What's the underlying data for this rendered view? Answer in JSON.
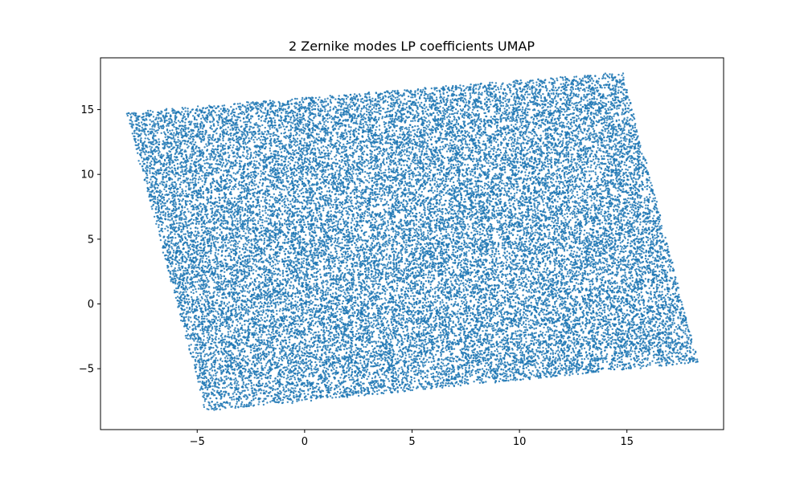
{
  "chart_data": {
    "type": "scatter",
    "title": "2 Zernike modes LP coefficients UMAP",
    "xlabel": "",
    "ylabel": "",
    "xlim": [
      -9.5,
      19.5
    ],
    "ylim": [
      -9.7,
      19.0
    ],
    "xticks": [
      -5,
      0,
      5,
      10,
      15
    ],
    "xtick_labels": [
      "−5",
      "0",
      "5",
      "10",
      "15"
    ],
    "yticks": [
      -5,
      0,
      5,
      10,
      15
    ],
    "ytick_labels": [
      "−5",
      "0",
      "5",
      "10",
      "15"
    ],
    "grid": false,
    "legend": "none",
    "series": [
      {
        "color": "#1f77b4",
        "marker_alpha": 0.85,
        "point_count": 30000,
        "region_corners": [
          [
            -8.3,
            14.8
          ],
          [
            14.8,
            17.9
          ],
          [
            18.3,
            -4.5
          ],
          [
            -4.6,
            -8.3
          ]
        ]
      }
    ]
  }
}
